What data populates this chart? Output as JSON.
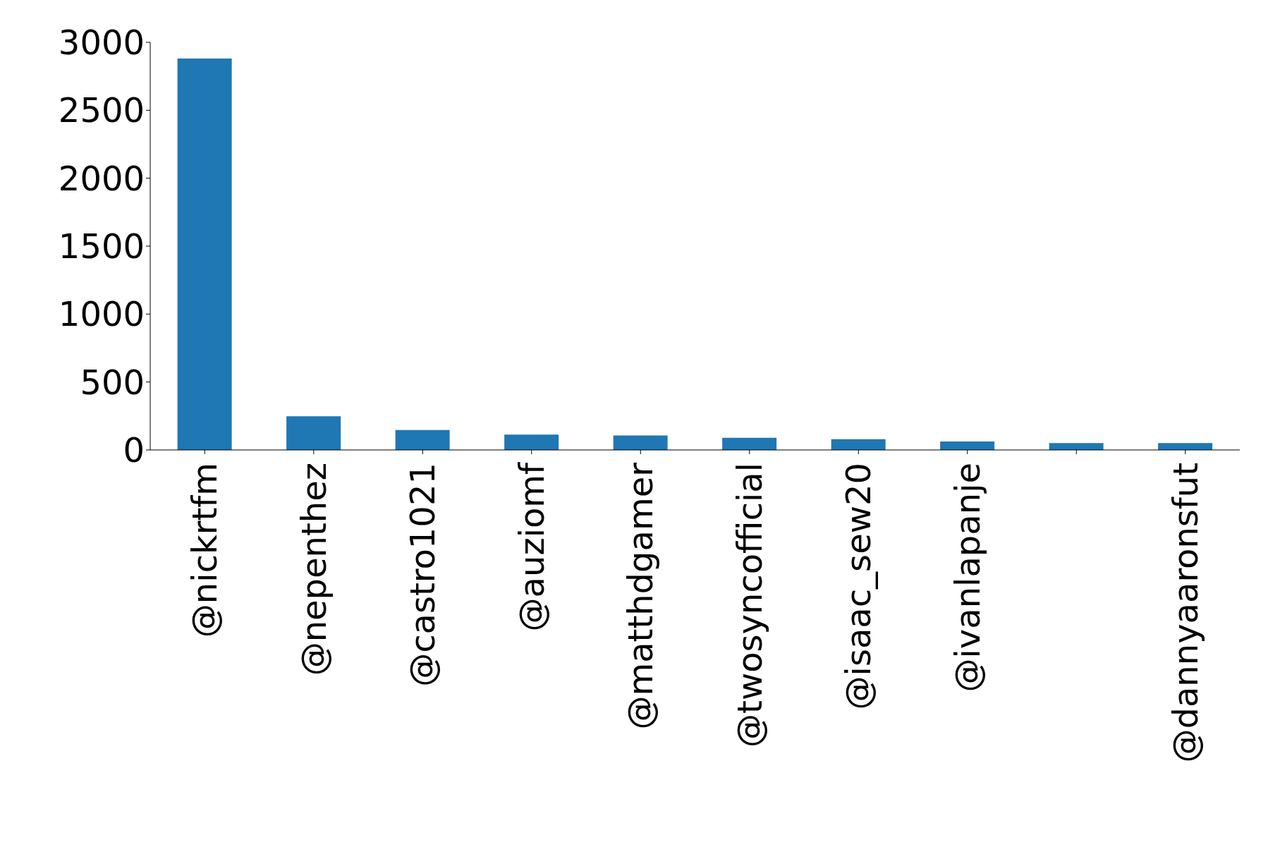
{
  "chart_data": {
    "type": "bar",
    "categories": [
      "@nickrtfm",
      "@nepenthez",
      "@castro1021",
      "@auziomf",
      "@matthdgamer",
      "@twosyncofficial",
      "@isaac_sew20",
      "@ivanlapanje",
      null,
      "@dannyaaronsfut"
    ],
    "values": [
      2880,
      248,
      146,
      113,
      107,
      90,
      79,
      62,
      51,
      51
    ],
    "color": "#1f77b4",
    "ylim": [
      0,
      3000
    ],
    "yticks": [
      0,
      500,
      1000,
      1500,
      2000,
      2500,
      3000
    ],
    "grid": false,
    "legend": false
  }
}
